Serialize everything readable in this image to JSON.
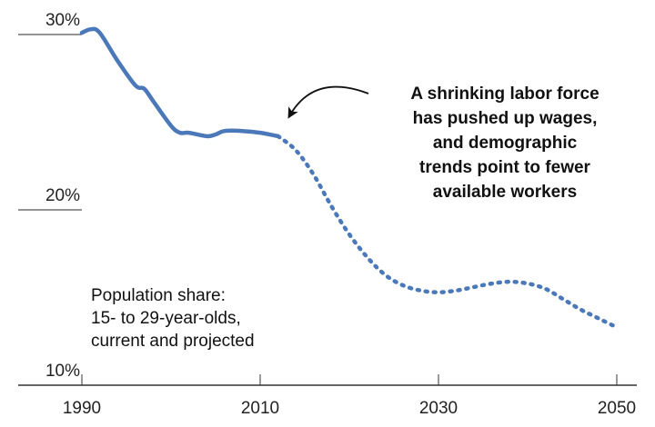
{
  "chart_data": {
    "type": "line",
    "title": "",
    "xlabel": "",
    "ylabel": "",
    "xlim": [
      1990,
      2050
    ],
    "ylim": [
      10,
      30
    ],
    "x_ticks": [
      "1990",
      "2010",
      "2030",
      "2050"
    ],
    "y_ticks": [
      "30%",
      "20%",
      "10%"
    ],
    "grid": false,
    "series": [
      {
        "style": "solid",
        "color": "#4a78b8",
        "x": [
          1990,
          1991,
          1992,
          1994,
          1996,
          1997,
          1998,
          2000,
          2001,
          2002,
          2004,
          2005,
          2006,
          2008,
          2010,
          2012
        ],
        "y": [
          30.1,
          30.3,
          30.1,
          28.5,
          27.1,
          26.9,
          26.2,
          24.8,
          24.4,
          24.4,
          24.2,
          24.3,
          24.5,
          24.5,
          24.4,
          24.2
        ]
      },
      {
        "style": "dotted",
        "color": "#4a78b8",
        "x": [
          2012,
          2014,
          2016,
          2018,
          2020,
          2022,
          2024,
          2026,
          2028,
          2030,
          2032,
          2034,
          2036,
          2038,
          2040,
          2042,
          2044,
          2046,
          2048,
          2050
        ],
        "y": [
          24.2,
          23.4,
          22.0,
          20.2,
          18.6,
          17.3,
          16.3,
          15.7,
          15.4,
          15.3,
          15.4,
          15.6,
          15.8,
          15.9,
          15.8,
          15.5,
          14.9,
          14.3,
          13.8,
          13.3
        ]
      }
    ],
    "annotations": [
      {
        "lines": [
          "A shrinking labor force",
          "has pushed up wages,",
          "and demographic",
          "trends point to fewer",
          "available workers"
        ],
        "arrow_to_x": 2012,
        "arrow_to_y": 24.2
      },
      {
        "lines": [
          "Population share:",
          "15- to 29-year-olds,",
          "current and projected"
        ]
      }
    ]
  }
}
